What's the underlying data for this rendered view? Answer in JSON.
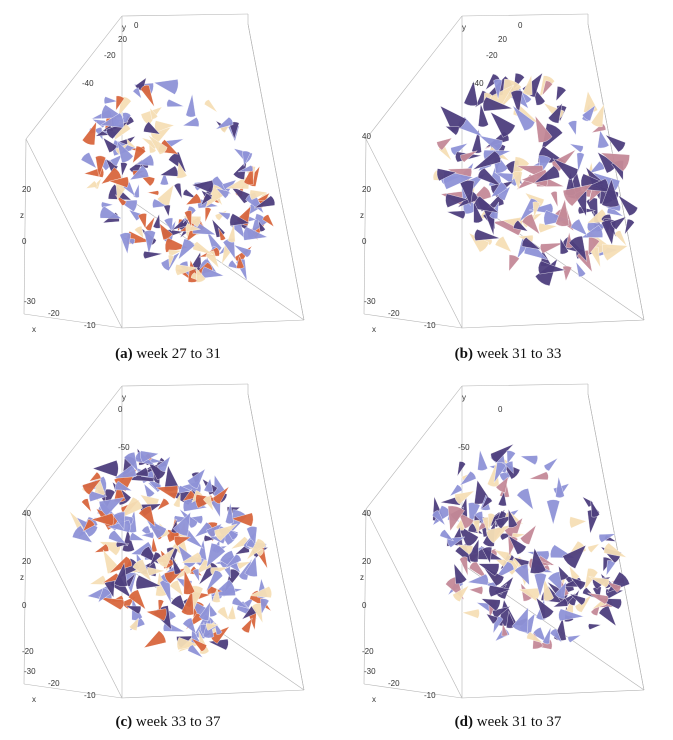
{
  "colors": {
    "cone_blue": "#8f93d8",
    "cone_purple": "#4e3f7e",
    "cone_orange": "#d9673e",
    "cone_cream": "#f6dfb6",
    "cone_pink": "#c58a98",
    "box_line": "#b3b3b3"
  },
  "panels": [
    {
      "label": "(a)",
      "caption": "week 27 to 31",
      "axis_x": "x",
      "axis_y": "y",
      "axis_z": "z",
      "x_ticks": [
        "-30",
        "-20",
        "-10"
      ],
      "y_ticks": [
        "20",
        "0",
        "-20",
        "-40"
      ],
      "z_ticks": [
        "20",
        "0"
      ]
    },
    {
      "label": "(b)",
      "caption": "week 31 to 33",
      "axis_x": "x",
      "axis_y": "y",
      "axis_z": "z",
      "x_ticks": [
        "-30",
        "-20",
        "-10"
      ],
      "y_ticks": [
        "20",
        "0",
        "-20",
        "-40"
      ],
      "z_ticks": [
        "40",
        "20",
        "0"
      ]
    },
    {
      "label": "(c)",
      "caption": "week 33 to 37",
      "axis_x": "x",
      "axis_y": "y",
      "axis_z": "z",
      "x_ticks": [
        "-30",
        "-20",
        "-10"
      ],
      "y_ticks": [
        "0",
        "-50"
      ],
      "z_ticks": [
        "40",
        "20",
        "0",
        "-20"
      ]
    },
    {
      "label": "(d)",
      "caption": "week 31 to 37",
      "axis_x": "x",
      "axis_y": "y",
      "axis_z": "z",
      "x_ticks": [
        "-30",
        "-20",
        "-10"
      ],
      "y_ticks": [
        "0",
        "-50"
      ],
      "z_ticks": [
        "40",
        "20",
        "0",
        "-20"
      ]
    }
  ]
}
